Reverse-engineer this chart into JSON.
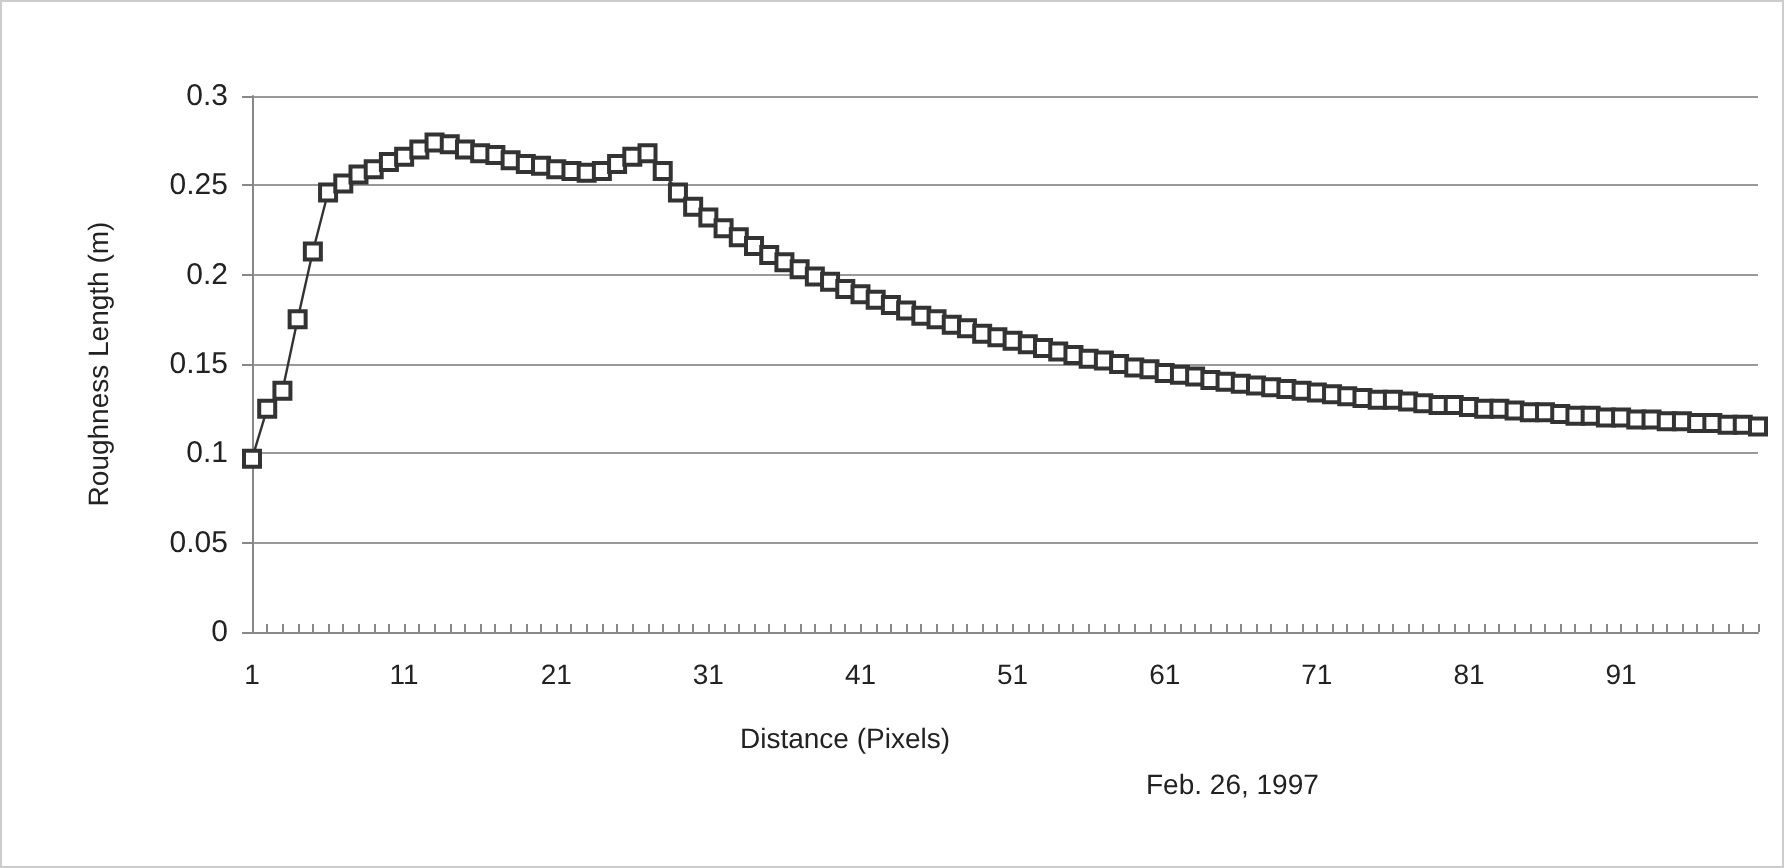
{
  "chart_data": {
    "type": "line",
    "xlabel": "Distance (Pixels)",
    "ylabel": "Roughness Length (m)",
    "annotations": [
      "Feb. 26, 1997"
    ],
    "categories": [
      "1",
      null,
      null,
      null,
      null,
      null,
      null,
      null,
      null,
      null,
      "11",
      null,
      null,
      null,
      null,
      null,
      null,
      null,
      null,
      null,
      "21",
      null,
      null,
      null,
      null,
      null,
      null,
      null,
      null,
      null,
      "31",
      null,
      null,
      null,
      null,
      null,
      null,
      null,
      null,
      null,
      "41",
      null,
      null,
      null,
      null,
      null,
      null,
      null,
      null,
      null,
      "51",
      null,
      null,
      null,
      null,
      null,
      null,
      null,
      null,
      null,
      "61",
      null,
      null,
      null,
      null,
      null,
      null,
      null,
      null,
      null,
      "71",
      null,
      null,
      null,
      null,
      null,
      null,
      null,
      null,
      null,
      "81",
      null,
      null,
      null,
      null,
      null,
      null,
      null,
      null,
      null,
      "91",
      null,
      null,
      null,
      null,
      null,
      null,
      null,
      null,
      null
    ],
    "series": [
      {
        "color": "#333333",
        "values": [
          0.097,
          0.125,
          0.135,
          0.175,
          0.213,
          0.246,
          0.251,
          0.256,
          0.259,
          0.263,
          0.266,
          0.27,
          0.274,
          0.273,
          0.27,
          0.268,
          0.267,
          0.264,
          0.262,
          0.261,
          0.259,
          0.258,
          0.257,
          0.258,
          0.262,
          0.266,
          0.268,
          0.258,
          0.246,
          0.238,
          0.232,
          0.226,
          0.221,
          0.216,
          0.211,
          0.207,
          0.203,
          0.199,
          0.196,
          0.192,
          0.189,
          0.186,
          0.183,
          0.18,
          0.177,
          0.175,
          0.172,
          0.17,
          0.167,
          0.165,
          0.163,
          0.161,
          0.159,
          0.157,
          0.155,
          0.153,
          0.152,
          0.15,
          0.148,
          0.147,
          0.145,
          0.144,
          0.143,
          0.141,
          0.14,
          0.139,
          0.138,
          0.137,
          0.136,
          0.135,
          0.134,
          0.133,
          0.132,
          0.131,
          0.13,
          0.13,
          0.129,
          0.128,
          0.127,
          0.127,
          0.126,
          0.125,
          0.125,
          0.124,
          0.123,
          0.123,
          0.122,
          0.121,
          0.121,
          0.12,
          0.12,
          0.119,
          0.119,
          0.118,
          0.118,
          0.117,
          0.117,
          0.116,
          0.116,
          0.115
        ]
      }
    ],
    "ylim": [
      0,
      0.3
    ],
    "yticks": [
      0,
      0.05,
      0.1,
      0.15,
      0.2,
      0.25,
      0.3
    ],
    "grid": "y",
    "marker": "square",
    "line_style": "solid"
  }
}
